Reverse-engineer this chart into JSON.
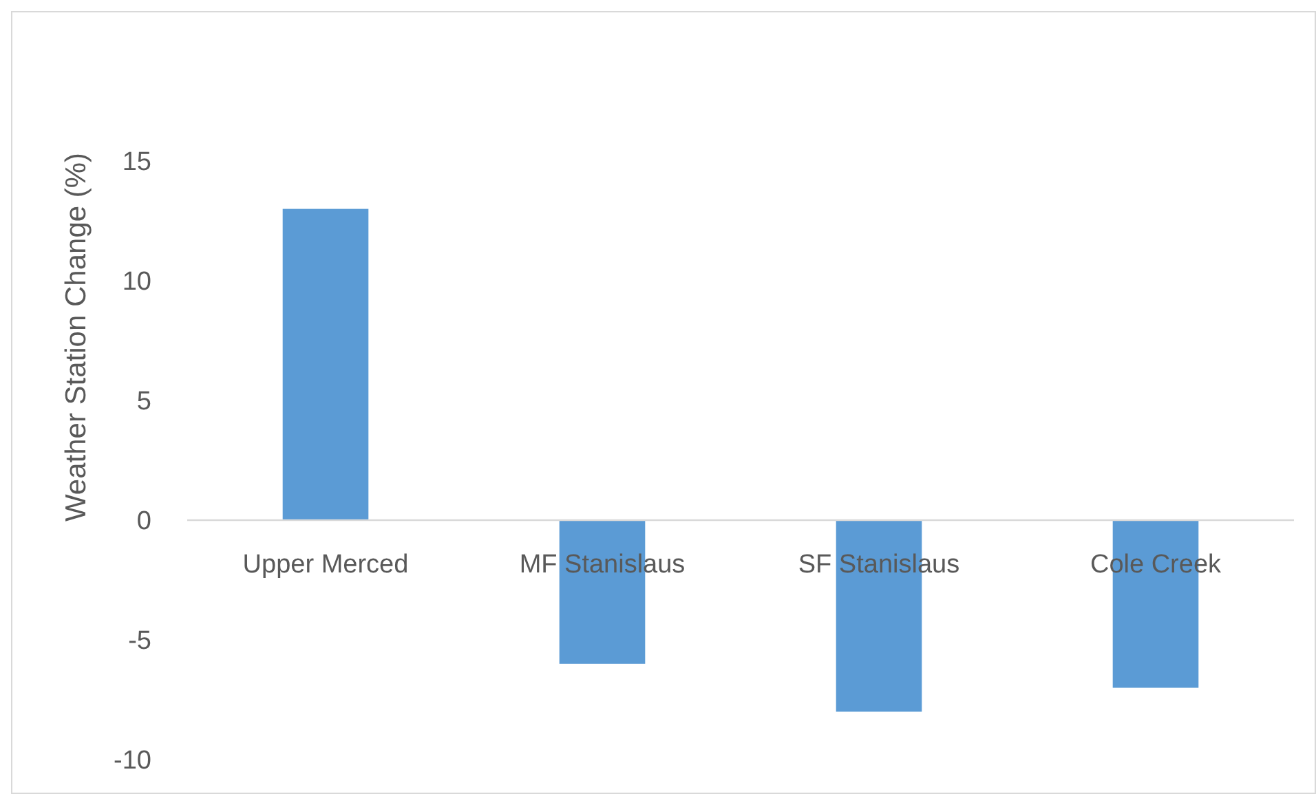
{
  "chart_data": {
    "type": "bar",
    "ylabel": "Weather Station Change (%)",
    "categories": [
      "Upper Merced",
      "MF Stanislaus",
      "SF Stanislaus",
      "Cole Creek"
    ],
    "values": [
      13,
      -6,
      -8,
      -7
    ],
    "color": "#5b9bd5",
    "ylim": [
      -10,
      15
    ],
    "yticks": [
      -10,
      -5,
      0,
      5,
      10,
      15
    ],
    "grid": false
  }
}
